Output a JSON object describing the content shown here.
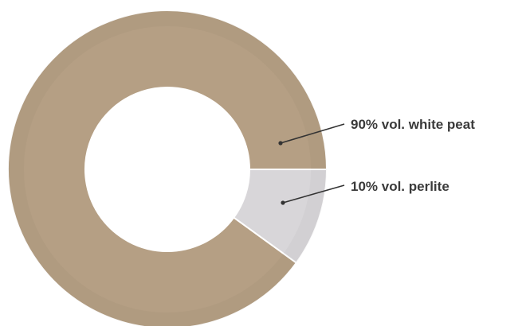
{
  "chart_data": {
    "type": "pie",
    "variant": "donut",
    "slices": [
      {
        "label": "90% vol. white peat",
        "value": 90,
        "color": "#b59f84"
      },
      {
        "label": "10% vol. perlite",
        "value": 10,
        "color": "#d8d6d9"
      }
    ],
    "label_color": "#3a3a3a",
    "leader_color": "#333333"
  }
}
